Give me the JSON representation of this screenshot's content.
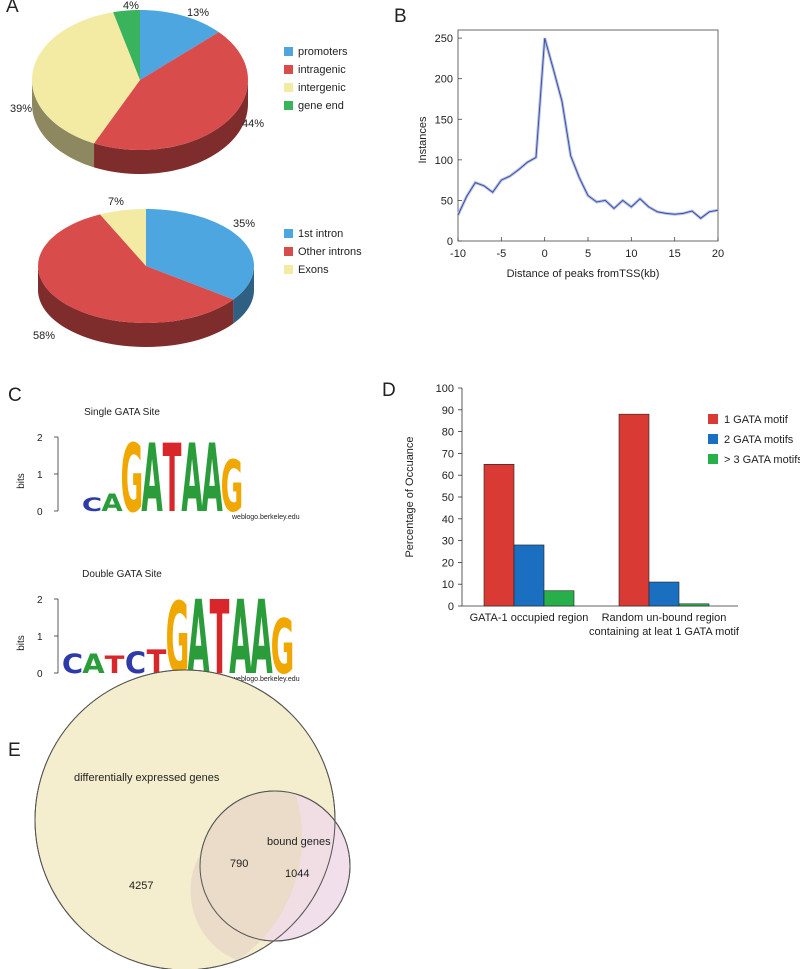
{
  "panels": {
    "A": "A",
    "B": "B",
    "C": "C",
    "D": "D",
    "E": "E"
  },
  "colors": {
    "blue": "#4da6e0",
    "red": "#d94c4c",
    "yellow": "#f3eba3",
    "green": "#39b45c",
    "line": "#3b4fa8",
    "bar_red": "#d93a33",
    "bar_blue": "#1a6fc0",
    "bar_green": "#27b04a",
    "venn_left": "#f5eece",
    "venn_right": "#eedbe8"
  },
  "chart_data": [
    {
      "id": "pie-genomic",
      "type": "pie",
      "slices": [
        {
          "label": "promoters",
          "value": 13,
          "text": "13%",
          "color": "#4da6e0"
        },
        {
          "label": "intragenic",
          "value": 44,
          "text": "44%",
          "color": "#d94c4c"
        },
        {
          "label": "intergenic",
          "value": 39,
          "text": "39%",
          "color": "#f3eba3"
        },
        {
          "label": "gene end",
          "value": 4,
          "text": "4%",
          "color": "#39b45c"
        }
      ],
      "legend": [
        "promoters",
        "intragenic",
        "intergenic",
        "gene end"
      ]
    },
    {
      "id": "pie-intron",
      "type": "pie",
      "slices": [
        {
          "label": "1st intron",
          "value": 35,
          "text": "35%",
          "color": "#4da6e0"
        },
        {
          "label": "Other introns",
          "value": 58,
          "text": "58%",
          "color": "#d94c4c"
        },
        {
          "label": "Exons",
          "value": 7,
          "text": "7%",
          "color": "#f3eba3"
        }
      ],
      "legend": [
        "1st intron",
        "Other introns",
        "Exons"
      ]
    },
    {
      "id": "line-tss",
      "type": "line",
      "xlabel": "Distance of peaks fromTSS(kb)",
      "ylabel": "Instances",
      "xlim": [
        -10,
        20
      ],
      "ylim": [
        0,
        260
      ],
      "xticks": [
        -10,
        -5,
        0,
        5,
        10,
        15,
        20
      ],
      "yticks": [
        0,
        50,
        100,
        150,
        200,
        250
      ],
      "x": [
        -10,
        -9,
        -8,
        -7,
        -6,
        -5,
        -4,
        -3,
        -2,
        -1,
        0,
        1,
        2,
        3,
        4,
        5,
        6,
        7,
        8,
        9,
        10,
        11,
        12,
        13,
        14,
        15,
        16,
        17,
        18,
        19,
        20
      ],
      "y": [
        32,
        55,
        72,
        68,
        60,
        75,
        80,
        88,
        97,
        103,
        250,
        212,
        172,
        105,
        78,
        56,
        48,
        50,
        40,
        50,
        42,
        52,
        42,
        36,
        34,
        33,
        34,
        37,
        28,
        36,
        38
      ]
    },
    {
      "id": "bar-gata",
      "type": "bar",
      "ylabel": "Percentage of Occuance",
      "ylim": [
        0,
        100
      ],
      "yticks": [
        0,
        10,
        20,
        30,
        40,
        50,
        60,
        70,
        80,
        90,
        100
      ],
      "categories": [
        [
          "GATA-1 occupied region"
        ],
        [
          "Random un-bound region",
          "containing at leat 1 GATA motif"
        ]
      ],
      "series": [
        {
          "name": "1 GATA motif",
          "values": [
            65,
            88
          ],
          "color": "#d93a33"
        },
        {
          "name": "2 GATA motifs",
          "values": [
            28,
            11
          ],
          "color": "#1a6fc0"
        },
        {
          "name": "> 3 GATA motifs",
          "values": [
            7,
            1
          ],
          "color": "#27b04a"
        }
      ]
    }
  ],
  "logos": [
    {
      "title": "Single  GATA Site",
      "ylabel": "bits",
      "yticks": [
        "2",
        "1",
        "0"
      ],
      "sequence": "CAGATAAG",
      "credit": "weblogo.berkeley.edu"
    },
    {
      "title": "Double GATA Site",
      "ylabel": "bits",
      "yticks": [
        "2",
        "1",
        "0"
      ],
      "sequence": "CATCTGATAAG",
      "credit": "weblogo.berkeley.edu"
    }
  ],
  "venn": {
    "left_label": "differentially expressed genes",
    "right_label": "bound genes",
    "left_only": "4257",
    "overlap": "790",
    "right_only": "1044"
  }
}
